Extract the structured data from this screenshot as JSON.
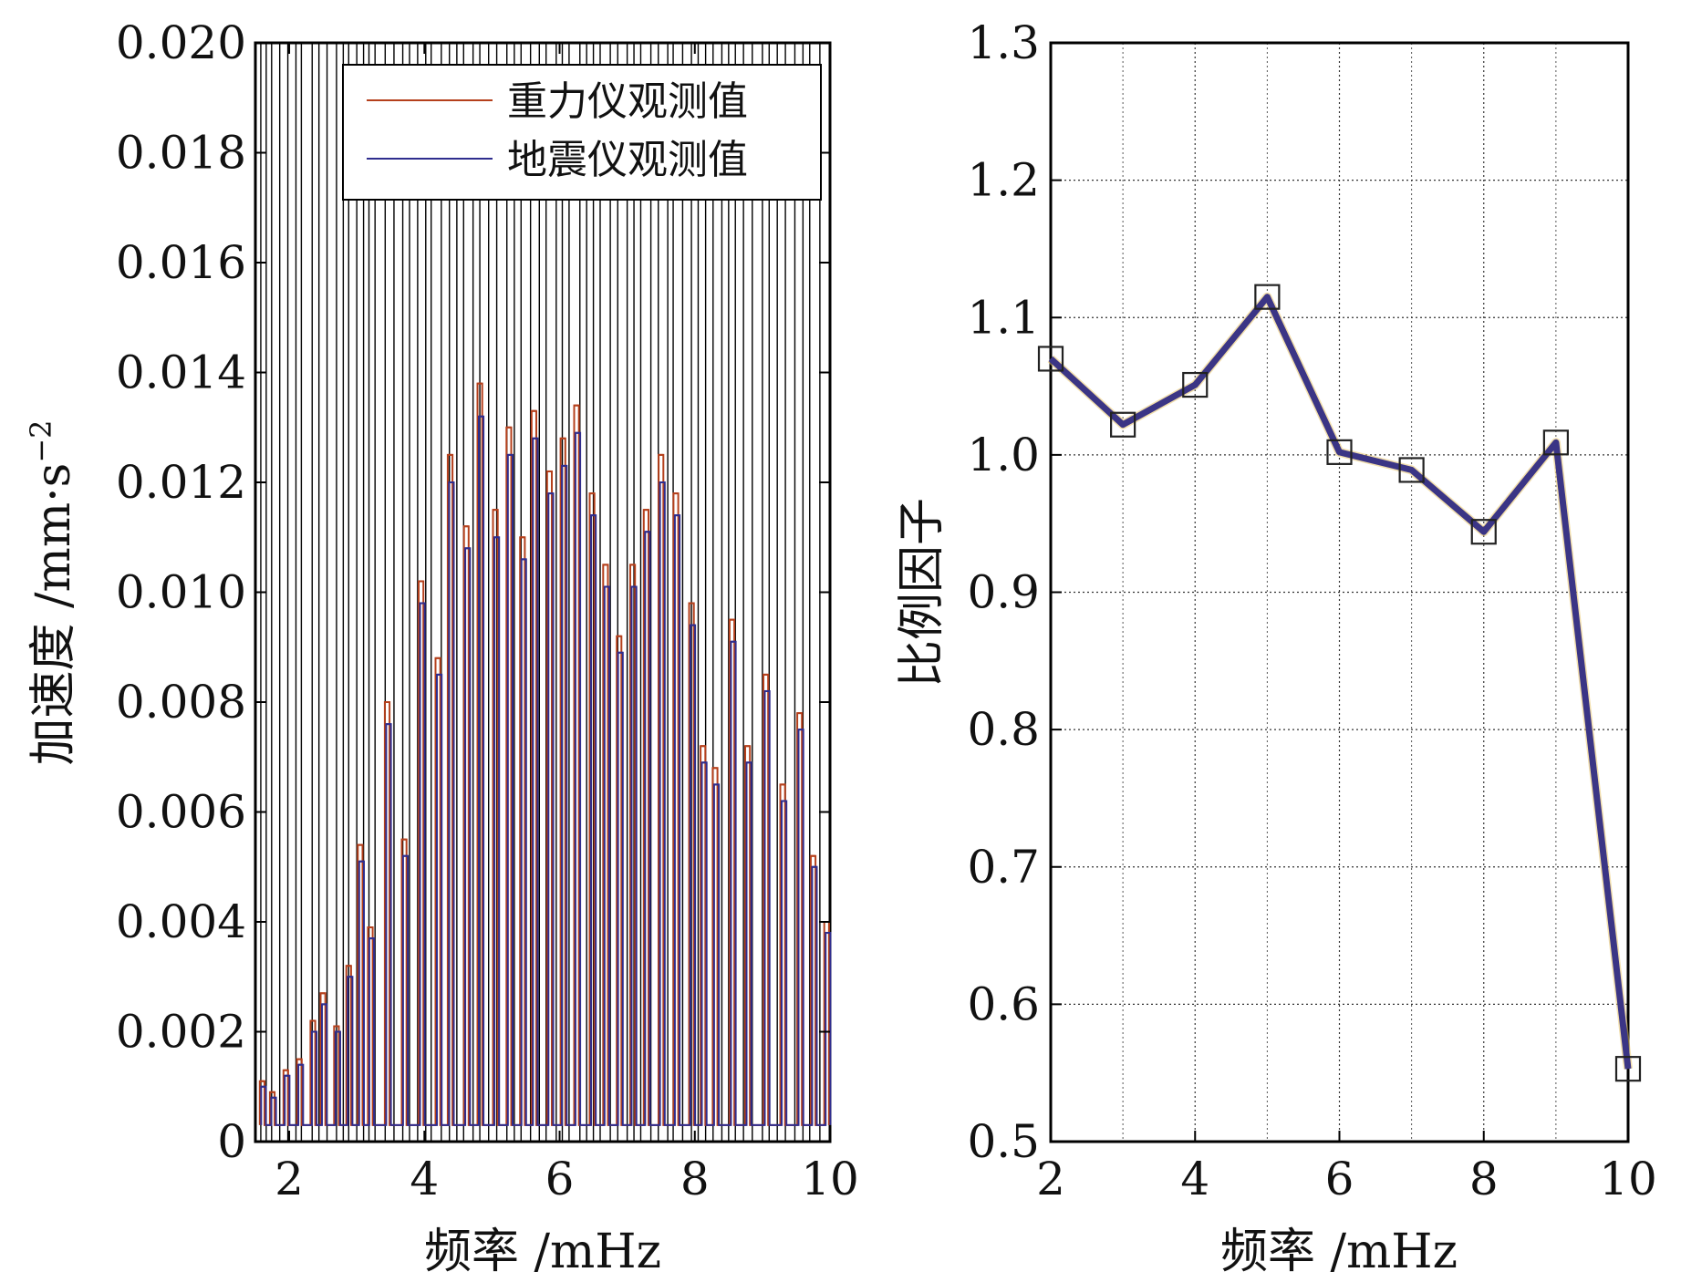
{
  "chart_data": [
    {
      "type": "line",
      "xlabel": "频率 /mHz",
      "ylabel": "加速度 /mm·s",
      "ylabel_superscript": "−2",
      "xlim": [
        1.5,
        10
      ],
      "ylim": [
        0,
        0.02
      ],
      "xticks": [
        2,
        4,
        6,
        8,
        10
      ],
      "xtick_labels": [
        "2",
        "4",
        "6",
        "8",
        "10"
      ],
      "yticks": [
        0,
        0.002,
        0.004,
        0.006,
        0.008,
        0.01,
        0.012,
        0.014,
        0.016,
        0.018,
        0.02
      ],
      "ytick_labels": [
        "0",
        "0.002",
        "0.004",
        "0.006",
        "0.008",
        "0.010",
        "0.012",
        "0.014",
        "0.016",
        "0.018",
        "0.020"
      ],
      "grid": false,
      "legend_position": "top-right",
      "mode_lines_mhz": [
        1.58,
        1.66,
        1.74,
        1.86,
        1.98,
        2.1,
        2.18,
        2.34,
        2.44,
        2.56,
        2.7,
        2.8,
        2.88,
        3.0,
        3.1,
        3.18,
        3.27,
        3.42,
        3.55,
        3.68,
        3.78,
        3.9,
        4.02,
        4.1,
        4.25,
        4.37,
        4.48,
        4.58,
        4.72,
        4.82,
        4.95,
        5.07,
        5.22,
        5.33,
        5.43,
        5.57,
        5.7,
        5.8,
        5.95,
        6.04,
        6.14,
        6.3,
        6.4,
        6.5,
        6.6,
        6.75,
        6.86,
        7.0,
        7.1,
        7.2,
        7.35,
        7.46,
        7.6,
        7.68,
        7.82,
        7.95,
        8.05,
        8.16,
        8.27,
        8.4,
        8.5,
        8.6,
        8.72,
        8.85,
        9.0,
        9.1,
        9.22,
        9.34,
        9.48,
        9.6,
        9.7,
        9.85
      ],
      "series": [
        {
          "name": "重力仪观测值",
          "color": "#b5401c",
          "peaks": [
            {
              "x": 1.6,
              "y": 0.0011
            },
            {
              "x": 1.75,
              "y": 0.0009
            },
            {
              "x": 1.95,
              "y": 0.0013
            },
            {
              "x": 2.15,
              "y": 0.0015
            },
            {
              "x": 2.35,
              "y": 0.0022
            },
            {
              "x": 2.5,
              "y": 0.0027
            },
            {
              "x": 2.7,
              "y": 0.0021
            },
            {
              "x": 2.88,
              "y": 0.0032
            },
            {
              "x": 3.05,
              "y": 0.0054
            },
            {
              "x": 3.2,
              "y": 0.0039
            },
            {
              "x": 3.45,
              "y": 0.008
            },
            {
              "x": 3.7,
              "y": 0.0055
            },
            {
              "x": 3.95,
              "y": 0.0102
            },
            {
              "x": 4.2,
              "y": 0.0088
            },
            {
              "x": 4.38,
              "y": 0.0125
            },
            {
              "x": 4.62,
              "y": 0.0112
            },
            {
              "x": 4.82,
              "y": 0.0138
            },
            {
              "x": 5.05,
              "y": 0.0115
            },
            {
              "x": 5.25,
              "y": 0.013
            },
            {
              "x": 5.45,
              "y": 0.011
            },
            {
              "x": 5.62,
              "y": 0.0133
            },
            {
              "x": 5.85,
              "y": 0.0122
            },
            {
              "x": 6.05,
              "y": 0.0128
            },
            {
              "x": 6.25,
              "y": 0.0134
            },
            {
              "x": 6.48,
              "y": 0.0118
            },
            {
              "x": 6.68,
              "y": 0.0105
            },
            {
              "x": 6.88,
              "y": 0.0092
            },
            {
              "x": 7.08,
              "y": 0.0105
            },
            {
              "x": 7.28,
              "y": 0.0115
            },
            {
              "x": 7.5,
              "y": 0.0125
            },
            {
              "x": 7.72,
              "y": 0.0118
            },
            {
              "x": 7.95,
              "y": 0.0098
            },
            {
              "x": 8.12,
              "y": 0.0072
            },
            {
              "x": 8.3,
              "y": 0.0068
            },
            {
              "x": 8.55,
              "y": 0.0095
            },
            {
              "x": 8.78,
              "y": 0.0072
            },
            {
              "x": 9.05,
              "y": 0.0085
            },
            {
              "x": 9.3,
              "y": 0.0065
            },
            {
              "x": 9.55,
              "y": 0.0078
            },
            {
              "x": 9.75,
              "y": 0.0052
            },
            {
              "x": 9.95,
              "y": 0.004
            }
          ]
        },
        {
          "name": "地震仪观测值",
          "color": "#2f2d8e",
          "peaks": [
            {
              "x": 1.62,
              "y": 0.001
            },
            {
              "x": 1.77,
              "y": 0.0008
            },
            {
              "x": 1.97,
              "y": 0.0012
            },
            {
              "x": 2.17,
              "y": 0.0014
            },
            {
              "x": 2.37,
              "y": 0.002
            },
            {
              "x": 2.52,
              "y": 0.0025
            },
            {
              "x": 2.72,
              "y": 0.002
            },
            {
              "x": 2.9,
              "y": 0.003
            },
            {
              "x": 3.07,
              "y": 0.0051
            },
            {
              "x": 3.22,
              "y": 0.0037
            },
            {
              "x": 3.47,
              "y": 0.0076
            },
            {
              "x": 3.72,
              "y": 0.0052
            },
            {
              "x": 3.97,
              "y": 0.0098
            },
            {
              "x": 4.22,
              "y": 0.0085
            },
            {
              "x": 4.4,
              "y": 0.012
            },
            {
              "x": 4.64,
              "y": 0.0108
            },
            {
              "x": 4.84,
              "y": 0.0132
            },
            {
              "x": 5.07,
              "y": 0.011
            },
            {
              "x": 5.27,
              "y": 0.0125
            },
            {
              "x": 5.47,
              "y": 0.0106
            },
            {
              "x": 5.64,
              "y": 0.0128
            },
            {
              "x": 5.87,
              "y": 0.0118
            },
            {
              "x": 6.07,
              "y": 0.0123
            },
            {
              "x": 6.27,
              "y": 0.0129
            },
            {
              "x": 6.5,
              "y": 0.0114
            },
            {
              "x": 6.7,
              "y": 0.0101
            },
            {
              "x": 6.9,
              "y": 0.0089
            },
            {
              "x": 7.1,
              "y": 0.0101
            },
            {
              "x": 7.3,
              "y": 0.0111
            },
            {
              "x": 7.52,
              "y": 0.012
            },
            {
              "x": 7.74,
              "y": 0.0114
            },
            {
              "x": 7.97,
              "y": 0.0094
            },
            {
              "x": 8.14,
              "y": 0.0069
            },
            {
              "x": 8.32,
              "y": 0.0065
            },
            {
              "x": 8.57,
              "y": 0.0091
            },
            {
              "x": 8.8,
              "y": 0.0069
            },
            {
              "x": 9.07,
              "y": 0.0082
            },
            {
              "x": 9.32,
              "y": 0.0062
            },
            {
              "x": 9.57,
              "y": 0.0075
            },
            {
              "x": 9.77,
              "y": 0.005
            },
            {
              "x": 9.97,
              "y": 0.0038
            }
          ]
        }
      ]
    },
    {
      "type": "line",
      "xlabel": "频率 /mHz",
      "ylabel": "比例因子",
      "xlim": [
        2,
        10
      ],
      "ylim": [
        0.5,
        1.3
      ],
      "xticks": [
        2,
        4,
        6,
        8,
        10
      ],
      "xtick_labels": [
        "2",
        "4",
        "6",
        "8",
        "10"
      ],
      "yticks": [
        0.5,
        0.6,
        0.7,
        0.8,
        0.9,
        1.0,
        1.1,
        1.2,
        1.3
      ],
      "ytick_labels": [
        "0.5",
        "0.6",
        "0.7",
        "0.8",
        "0.9",
        "1.0",
        "1.1",
        "1.2",
        "1.3"
      ],
      "grid": true,
      "line_color": "#3b3585",
      "series": [
        {
          "x": [
            2,
            3,
            4,
            5,
            6,
            7,
            8,
            9,
            10
          ],
          "y": [
            1.07,
            1.022,
            1.051,
            1.115,
            1.002,
            0.989,
            0.944,
            1.009,
            0.553
          ]
        }
      ]
    }
  ]
}
